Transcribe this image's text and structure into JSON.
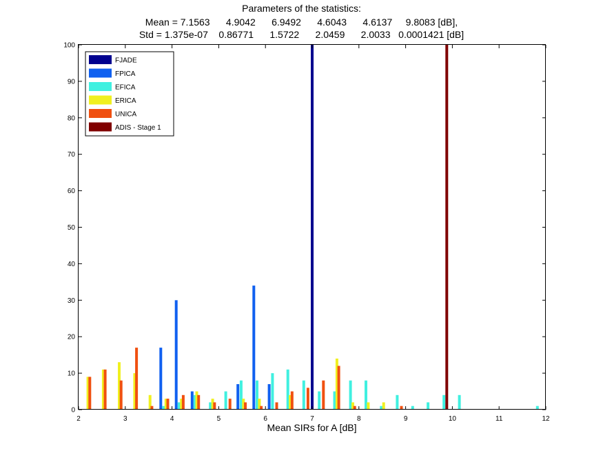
{
  "chart_data": {
    "type": "bar",
    "title": "Parameters of the statistics:",
    "subtitle_mean": "Mean = 7.1563      4.9042      6.9492      4.6043      4.6137     9.8083 [dB],",
    "subtitle_std": "Std = 1.375e-07    0.86771      1.5722      2.0459      2.0033   0.0001421 [dB]",
    "xlabel": "Mean SIRs for A [dB]",
    "ylabel": "",
    "xlim": [
      2,
      12
    ],
    "ylim": [
      0,
      100
    ],
    "xticks": [
      "2",
      "3",
      "4",
      "5",
      "6",
      "7",
      "8",
      "9",
      "10",
      "11",
      "12"
    ],
    "yticks": [
      "0",
      "10",
      "20",
      "30",
      "40",
      "50",
      "60",
      "70",
      "80",
      "90",
      "100"
    ],
    "grid": false,
    "legend_position": "top-left",
    "series": [
      {
        "name": "FJADE",
        "color": "#00008f",
        "points": [
          [
            7.0,
            100
          ]
        ]
      },
      {
        "name": "FPICA",
        "color": "#1060f0",
        "points": [
          [
            3.76,
            17
          ],
          [
            4.09,
            30
          ],
          [
            4.43,
            5
          ],
          [
            5.41,
            7
          ],
          [
            5.75,
            34
          ],
          [
            6.08,
            7
          ]
        ]
      },
      {
        "name": "EFICA",
        "color": "#40f0e0",
        "points": [
          [
            3.82,
            1
          ],
          [
            4.15,
            2
          ],
          [
            4.49,
            4
          ],
          [
            4.82,
            2
          ],
          [
            5.15,
            5
          ],
          [
            5.48,
            8
          ],
          [
            5.82,
            8
          ],
          [
            6.15,
            10
          ],
          [
            6.48,
            11
          ],
          [
            6.82,
            8
          ],
          [
            7.15,
            5
          ],
          [
            7.48,
            5
          ],
          [
            7.82,
            8
          ],
          [
            8.15,
            8
          ],
          [
            8.48,
            1
          ],
          [
            8.82,
            4
          ],
          [
            9.15,
            1
          ],
          [
            9.48,
            2
          ],
          [
            9.82,
            4
          ],
          [
            10.15,
            4
          ],
          [
            11.82,
            1
          ]
        ]
      },
      {
        "name": "ERICA",
        "color": "#f0f020",
        "points": [
          [
            2.2,
            9
          ],
          [
            2.53,
            11
          ],
          [
            2.87,
            13
          ],
          [
            3.2,
            10
          ],
          [
            3.53,
            4
          ],
          [
            3.87,
            3
          ],
          [
            4.2,
            3
          ],
          [
            4.53,
            5
          ],
          [
            4.87,
            3
          ],
          [
            5.53,
            3
          ],
          [
            5.87,
            3
          ],
          [
            6.53,
            4
          ],
          [
            7.53,
            14
          ],
          [
            7.87,
            2
          ],
          [
            8.2,
            2
          ],
          [
            8.53,
            2
          ]
        ]
      },
      {
        "name": "UNICA",
        "color": "#f05010",
        "points": [
          [
            2.24,
            9
          ],
          [
            2.57,
            11
          ],
          [
            2.91,
            8
          ],
          [
            3.24,
            17
          ],
          [
            3.57,
            1
          ],
          [
            3.91,
            3
          ],
          [
            4.24,
            4
          ],
          [
            4.57,
            4
          ],
          [
            4.91,
            2
          ],
          [
            5.24,
            3
          ],
          [
            5.57,
            2
          ],
          [
            5.91,
            1
          ],
          [
            6.24,
            2
          ],
          [
            6.57,
            5
          ],
          [
            6.91,
            6
          ],
          [
            7.24,
            8
          ],
          [
            7.57,
            12
          ],
          [
            7.91,
            1
          ],
          [
            8.91,
            1
          ]
        ]
      },
      {
        "name": "ADIS - Stage 1",
        "color": "#800000",
        "points": [
          [
            9.88,
            100
          ]
        ]
      }
    ]
  }
}
